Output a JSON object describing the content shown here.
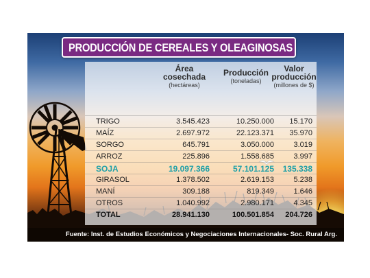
{
  "title": "PRODUCCIÓN DE CEREALES Y OLEAGINOSAS",
  "headers": {
    "area": {
      "title_1": "Área",
      "title_2": "cosechada",
      "unit": "(hectáreas)"
    },
    "production": {
      "title": "Producción",
      "unit": "(toneladas)"
    },
    "value": {
      "title_1": "Valor",
      "title_2": "producción",
      "unit": "(millones de $)"
    }
  },
  "rows": [
    {
      "crop": "TRIGO",
      "area": "3.545.423",
      "production": "10.250.000",
      "value": "15.170"
    },
    {
      "crop": "MAÍZ",
      "area": "2.697.972",
      "production": "22.123.371",
      "value": "35.970"
    },
    {
      "crop": "SORGO",
      "area": "645.791",
      "production": "3.050.000",
      "value": "3.019"
    },
    {
      "crop": "ARROZ",
      "area": "225.896",
      "production": "1.558.685",
      "value": "3.997"
    },
    {
      "crop": "SOJA",
      "area": "19.097.366",
      "production": "57.101.125",
      "value": "135.338"
    },
    {
      "crop": "GIRASOL",
      "area": "1.378.502",
      "production": "2.619.153",
      "value": "5.238"
    },
    {
      "crop": "MANÍ",
      "area": "309.188",
      "production": "819.349",
      "value": "1.646"
    },
    {
      "crop": "OTROS",
      "area": "1.040.992",
      "production": "2.980.171",
      "value": "4.345"
    }
  ],
  "total": {
    "crop": "TOTAL",
    "area": "28.941.130",
    "production": "100.501.854",
    "value": "204.726"
  },
  "footer": "Fuente: Inst. de Estudios Económicos y Negociaciones Internacionales- Soc. Rural Arg.",
  "colors": {
    "title_bg": "#7a2a82",
    "highlight": "#1fa0a8"
  }
}
